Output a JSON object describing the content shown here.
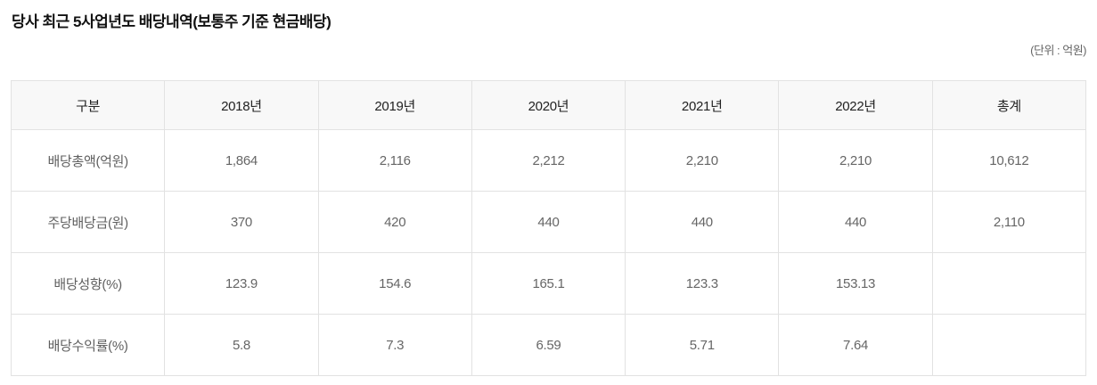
{
  "page": {
    "title": "당사 최근 5사업년도 배당내역(보통주 기준 현금배당)",
    "unit_label": "(단위 : 억원)"
  },
  "colors": {
    "header_bg": "#f8f8f8",
    "border": "#e2e2e2",
    "title_text": "#111111",
    "header_text": "#222222",
    "body_text": "#666666"
  },
  "table": {
    "columns": [
      "구분",
      "2018년",
      "2019년",
      "2020년",
      "2021년",
      "2022년",
      "총계"
    ],
    "rows": [
      {
        "label": "배당총액(억원)",
        "values": [
          "1,864",
          "2,116",
          "2,212",
          "2,210",
          "2,210",
          "10,612"
        ]
      },
      {
        "label": "주당배당금(원)",
        "values": [
          "370",
          "420",
          "440",
          "440",
          "440",
          "2,110"
        ]
      },
      {
        "label": "배당성향(%)",
        "values": [
          "123.9",
          "154.6",
          "165.1",
          "123.3",
          "153.13",
          ""
        ]
      },
      {
        "label": "배당수익률(%)",
        "values": [
          "5.8",
          "7.3",
          "6.59",
          "5.71",
          "7.64",
          ""
        ]
      }
    ]
  }
}
